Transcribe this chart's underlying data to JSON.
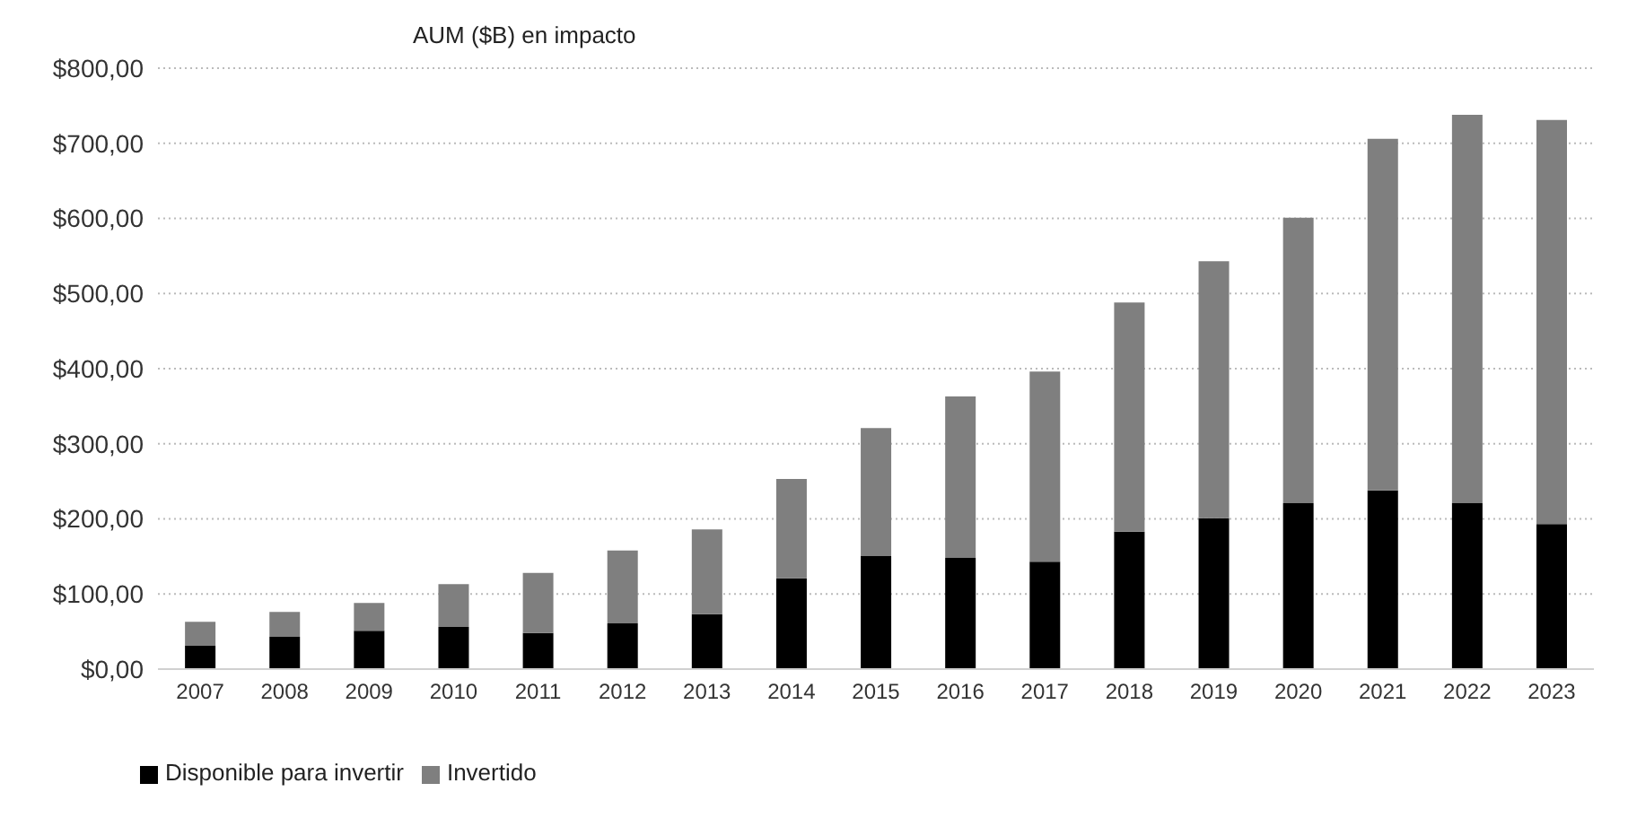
{
  "chart_data": {
    "type": "bar",
    "title": "AUM ($B) en impacto",
    "stacked": true,
    "categories": [
      "2007",
      "2008",
      "2009",
      "2010",
      "2011",
      "2012",
      "2013",
      "2014",
      "2015",
      "2016",
      "2017",
      "2018",
      "2019",
      "2020",
      "2021",
      "2022",
      "2023"
    ],
    "series": [
      {
        "name": "Disponible para invertir",
        "color": "#000000",
        "values": [
          31,
          43,
          51,
          56,
          48,
          61,
          73,
          121,
          151,
          148,
          143,
          183,
          201,
          221,
          238,
          221,
          193
        ]
      },
      {
        "name": "Invertido",
        "color": "#7f7f7f",
        "values": [
          32,
          33,
          37,
          57,
          80,
          97,
          113,
          132,
          170,
          215,
          253,
          305,
          342,
          380,
          468,
          517,
          538
        ]
      }
    ],
    "ylim": [
      0,
      800
    ],
    "yticks": [
      {
        "value": 0,
        "label": "$0,00"
      },
      {
        "value": 100,
        "label": "$100,00"
      },
      {
        "value": 200,
        "label": "$200,00"
      },
      {
        "value": 300,
        "label": "$300,00"
      },
      {
        "value": 400,
        "label": "$400,00"
      },
      {
        "value": 500,
        "label": "$500,00"
      },
      {
        "value": 600,
        "label": "$600,00"
      },
      {
        "value": 700,
        "label": "$700,00"
      },
      {
        "value": 800,
        "label": "$800,00"
      }
    ],
    "grid": "y",
    "legend": "bottom left"
  }
}
